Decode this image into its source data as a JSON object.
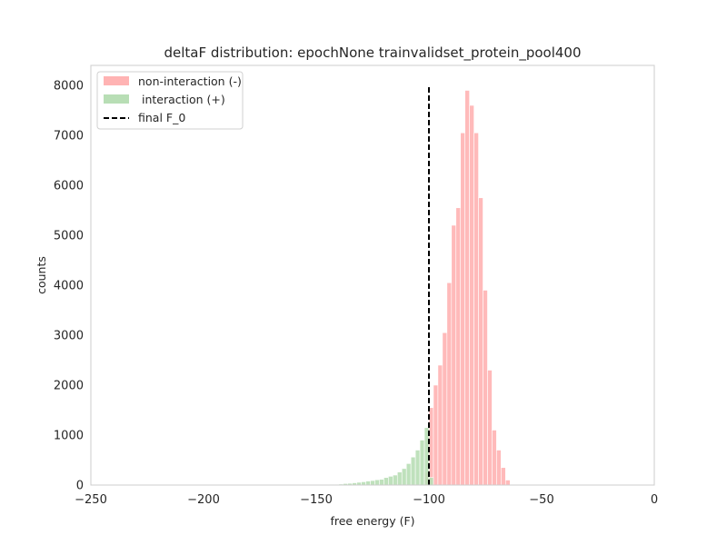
{
  "chart_data": {
    "type": "histogram",
    "title": "deltaF distribution: epochNone trainvalidset_protein_pool400",
    "xlabel": "free energy (F)",
    "ylabel": "counts",
    "xlim": [
      -250,
      0
    ],
    "ylim": [
      0,
      8400
    ],
    "xticks": [
      -250,
      -200,
      -150,
      -100,
      -50,
      0
    ],
    "xtick_labels": [
      "−250",
      "−200",
      "−150",
      "−100",
      "−50",
      "0"
    ],
    "yticks": [
      0,
      1000,
      2000,
      3000,
      4000,
      5000,
      6000,
      7000,
      8000
    ],
    "ytick_labels": [
      "0",
      "1000",
      "2000",
      "3000",
      "4000",
      "5000",
      "6000",
      "7000",
      "8000"
    ],
    "grid": false,
    "legend_position": "top-left",
    "bin_width": 2,
    "series": [
      {
        "name": "non-interaction (-)",
        "color": "#ffb3b3",
        "bins": [
          {
            "x0": -102,
            "count": 250
          },
          {
            "x0": -100,
            "count": 1550
          },
          {
            "x0": -98,
            "count": 2000
          },
          {
            "x0": -96,
            "count": 2400
          },
          {
            "x0": -94,
            "count": 3050
          },
          {
            "x0": -92,
            "count": 4050
          },
          {
            "x0": -90,
            "count": 5200
          },
          {
            "x0": -88,
            "count": 5550
          },
          {
            "x0": -86,
            "count": 7050
          },
          {
            "x0": -84,
            "count": 7900
          },
          {
            "x0": -82,
            "count": 7600
          },
          {
            "x0": -80,
            "count": 7050
          },
          {
            "x0": -78,
            "count": 5750
          },
          {
            "x0": -76,
            "count": 3900
          },
          {
            "x0": -74,
            "count": 2300
          },
          {
            "x0": -72,
            "count": 1100
          },
          {
            "x0": -70,
            "count": 700
          },
          {
            "x0": -68,
            "count": 350
          },
          {
            "x0": -66,
            "count": 100
          }
        ]
      },
      {
        "name": " interaction (+)",
        "color": "#b8deb5",
        "bins": [
          {
            "x0": -144,
            "count": 10
          },
          {
            "x0": -142,
            "count": 15
          },
          {
            "x0": -140,
            "count": 20
          },
          {
            "x0": -138,
            "count": 30
          },
          {
            "x0": -136,
            "count": 35
          },
          {
            "x0": -134,
            "count": 45
          },
          {
            "x0": -132,
            "count": 55
          },
          {
            "x0": -130,
            "count": 65
          },
          {
            "x0": -128,
            "count": 80
          },
          {
            "x0": -126,
            "count": 90
          },
          {
            "x0": -124,
            "count": 105
          },
          {
            "x0": -122,
            "count": 115
          },
          {
            "x0": -120,
            "count": 150
          },
          {
            "x0": -118,
            "count": 175
          },
          {
            "x0": -116,
            "count": 200
          },
          {
            "x0": -114,
            "count": 260
          },
          {
            "x0": -112,
            "count": 330
          },
          {
            "x0": -110,
            "count": 430
          },
          {
            "x0": -108,
            "count": 560
          },
          {
            "x0": -106,
            "count": 700
          },
          {
            "x0": -104,
            "count": 900
          },
          {
            "x0": -102,
            "count": 1150
          },
          {
            "x0": -100,
            "count": 150
          }
        ]
      }
    ],
    "vline": {
      "name": "final F_0",
      "x": -100,
      "ymin": 0,
      "ymax": 8000,
      "color": "#000000",
      "style": "dashed"
    }
  }
}
